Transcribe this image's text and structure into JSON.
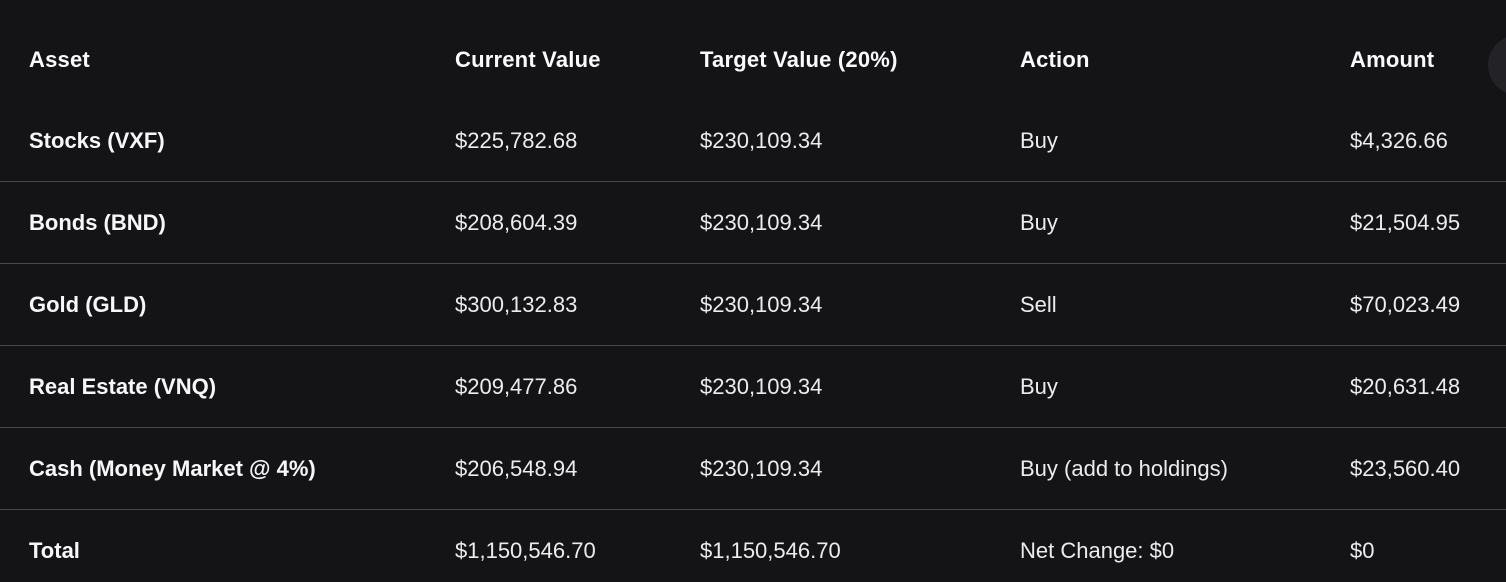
{
  "theme": {
    "background": "#141416",
    "text_color": "#f4f4f5",
    "divider_color": "#47474b",
    "corner_circle_color": "#232327"
  },
  "table": {
    "columns": [
      {
        "key": "asset",
        "label": "Asset"
      },
      {
        "key": "current",
        "label": "Current Value"
      },
      {
        "key": "target",
        "label": "Target Value (20%)"
      },
      {
        "key": "action",
        "label": "Action"
      },
      {
        "key": "amount",
        "label": "Amount"
      }
    ],
    "rows": [
      {
        "asset": "Stocks (VXF)",
        "current": "$225,782.68",
        "target": "$230,109.34",
        "action": "Buy",
        "amount": "$4,326.66"
      },
      {
        "asset": "Bonds (BND)",
        "current": "$208,604.39",
        "target": "$230,109.34",
        "action": "Buy",
        "amount": "$21,504.95"
      },
      {
        "asset": "Gold (GLD)",
        "current": "$300,132.83",
        "target": "$230,109.34",
        "action": "Sell",
        "amount": "$70,023.49"
      },
      {
        "asset": "Real Estate (VNQ)",
        "current": "$209,477.86",
        "target": "$230,109.34",
        "action": "Buy",
        "amount": "$20,631.48"
      },
      {
        "asset": "Cash (Money Market @ 4%)",
        "current": "$206,548.94",
        "target": "$230,109.34",
        "action": "Buy (add to holdings)",
        "amount": "$23,560.40"
      }
    ],
    "total_row": {
      "asset": "Total",
      "current": "$1,150,546.70",
      "target": "$1,150,546.70",
      "action": "Net Change: $0",
      "amount": "$0"
    }
  }
}
